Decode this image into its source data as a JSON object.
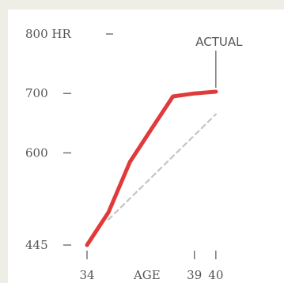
{
  "colors": {
    "background": "#eeede6",
    "card": "#ffffff",
    "actual": "#e03a3a",
    "projection": "#c4c4c4",
    "ink": "#555555"
  },
  "chart_data": {
    "type": "line",
    "title": "",
    "xlabel": "AGE",
    "ylabel": "HR",
    "xlim": [
      34,
      41
    ],
    "ylim": [
      445,
      800
    ],
    "y_ticks": [
      {
        "value": 800,
        "label": "800 HR"
      },
      {
        "value": 700,
        "label": "700"
      },
      {
        "value": 600,
        "label": "600"
      },
      {
        "value": 445,
        "label": "445"
      }
    ],
    "x_ticks": [
      {
        "value": 34,
        "label": "34"
      },
      {
        "value": 39,
        "label": "39"
      },
      {
        "value": 40,
        "label": "40"
      }
    ],
    "series": [
      {
        "name": "ACTUAL",
        "style": "solid",
        "color": "#e03a3a",
        "points": [
          [
            34,
            445
          ],
          [
            35,
            500
          ],
          [
            36,
            585
          ],
          [
            37,
            640
          ],
          [
            38,
            695
          ],
          [
            39,
            700
          ],
          [
            40,
            703
          ]
        ]
      },
      {
        "name": "",
        "style": "dashed",
        "color": "#c4c4c4",
        "points": [
          [
            35,
            488
          ],
          [
            40,
            665
          ]
        ]
      }
    ],
    "annotations": [
      {
        "text": "ACTUAL",
        "x": 40,
        "y": 703
      }
    ],
    "legend": "none",
    "grid": false
  }
}
